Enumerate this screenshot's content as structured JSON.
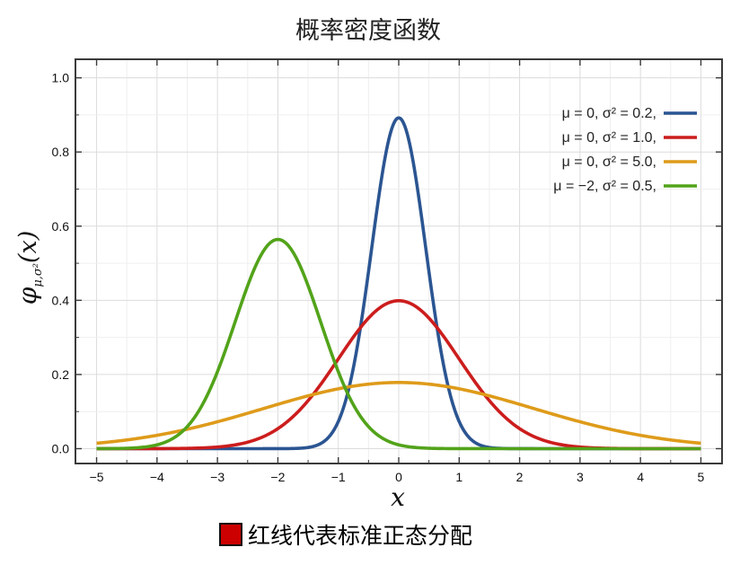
{
  "chart_data": {
    "type": "line",
    "title": "概率密度函数",
    "xlabel": "x",
    "ylabel": "φ",
    "ylabel_subscript": "μ,σ²",
    "ylabel_arg": "(x)",
    "xlim": [
      -5.35,
      5.35
    ],
    "ylim": [
      -0.04,
      1.05
    ],
    "x_ticks": [
      -5,
      -4,
      -3,
      -2,
      -1,
      0,
      1,
      2,
      3,
      4,
      5
    ],
    "x_tick_labels": [
      "−5",
      "−4",
      "−3",
      "−2",
      "−1",
      "0",
      "1",
      "2",
      "3",
      "4",
      "5"
    ],
    "y_ticks": [
      0.0,
      0.2,
      0.4,
      0.6,
      0.8,
      1.0
    ],
    "y_tick_labels": [
      "0.0",
      "0.2",
      "0.4",
      "0.6",
      "0.8",
      "1.0"
    ],
    "grid": true,
    "legend_position": "top-right",
    "series": [
      {
        "name": "μ = 0,    σ² = 0.2,",
        "mu": 0,
        "variance": 0.2,
        "color": "#2b5592",
        "peak": 0.892
      },
      {
        "name": "μ = 0,    σ² = 1.0,",
        "mu": 0,
        "variance": 1.0,
        "color": "#cc1d1d",
        "peak": 0.399
      },
      {
        "name": "μ = 0,    σ² = 5.0,",
        "mu": 0,
        "variance": 5.0,
        "color": "#de9b1a",
        "peak": 0.178
      },
      {
        "name": "μ = −2,  σ² = 0.5,",
        "mu": -2,
        "variance": 0.5,
        "color": "#52a31a",
        "peak": 0.564
      }
    ]
  },
  "footer": {
    "swatch_color": "#cc0000",
    "text": "红线代表标准正态分配"
  }
}
